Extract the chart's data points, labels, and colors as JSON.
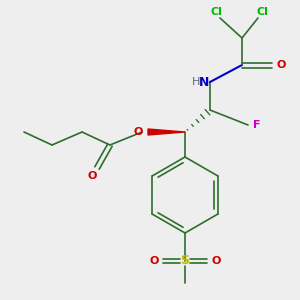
{
  "background_color": "#eeeeee",
  "bond_color": "#2d6e2d",
  "bond_width": 1.2,
  "fig_width": 3.0,
  "fig_height": 3.0,
  "dpi": 100,
  "colors": {
    "bond": "#2d6e2d",
    "Cl": "#00bb00",
    "N": "#0000cc",
    "H": "#666666",
    "O": "#cc0000",
    "F": "#cc00cc",
    "S": "#bbbb00"
  }
}
